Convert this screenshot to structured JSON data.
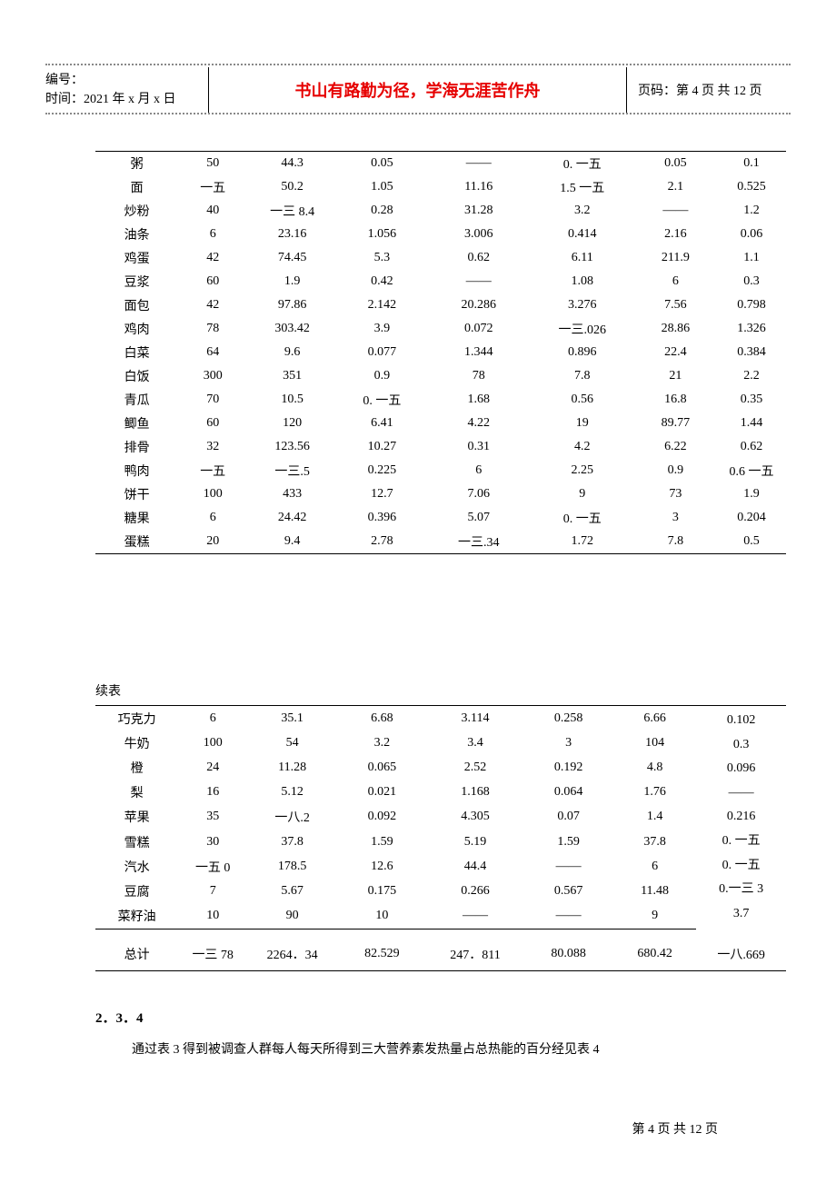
{
  "header": {
    "serial_label": "编号：",
    "date_label": "时间：2021 年 x 月 x 日",
    "center_text": "书山有路勤为径，学海无涯苦作舟",
    "page_label": "页码：第 4 页 共 12 页"
  },
  "table1": {
    "col_widths": [
      "12%",
      "10%",
      "13%",
      "13%",
      "15%",
      "15%",
      "12%",
      "10%"
    ],
    "rows": [
      [
        "粥",
        "50",
        "44.3",
        "0.05",
        "——",
        "0. 一五",
        "0.05",
        "0.1"
      ],
      [
        "面",
        "一五",
        "50.2",
        "1.05",
        "11.16",
        "1.5 一五",
        "2.1",
        "0.525"
      ],
      [
        "炒粉",
        "40",
        "一三 8.4",
        "0.28",
        "31.28",
        "3.2",
        "——",
        "1.2"
      ],
      [
        "油条",
        "6",
        "23.16",
        "1.056",
        "3.006",
        "0.414",
        "2.16",
        "0.06"
      ],
      [
        "鸡蛋",
        "42",
        "74.45",
        "5.3",
        "0.62",
        "6.11",
        "211.9",
        "1.1"
      ],
      [
        "豆浆",
        "60",
        "1.9",
        "0.42",
        "——",
        "1.08",
        "6",
        "0.3"
      ],
      [
        "面包",
        "42",
        "97.86",
        "2.142",
        "20.286",
        "3.276",
        "7.56",
        "0.798"
      ],
      [
        "鸡肉",
        "78",
        "303.42",
        "3.9",
        "0.072",
        "一三.026",
        "28.86",
        "1.326"
      ],
      [
        "白菜",
        "64",
        "9.6",
        "0.077",
        "1.344",
        "0.896",
        "22.4",
        "0.384"
      ],
      [
        "白饭",
        "300",
        "351",
        "0.9",
        "78",
        "7.8",
        "21",
        "2.2"
      ],
      [
        "青瓜",
        "70",
        "10.5",
        "0. 一五",
        "1.68",
        "0.56",
        "16.8",
        "0.35"
      ],
      [
        "鲫鱼",
        "60",
        "120",
        "6.41",
        "4.22",
        "19",
        "89.77",
        "1.44"
      ],
      [
        "排骨",
        "32",
        "123.56",
        "10.27",
        "0.31",
        "4.2",
        "6.22",
        "0.62"
      ],
      [
        "鸭肉",
        "一五",
        "一三.5",
        "0.225",
        "6",
        "2.25",
        "0.9",
        "0.6 一五"
      ],
      [
        "饼干",
        "100",
        "433",
        "12.7",
        "7.06",
        "9",
        "73",
        "1.9"
      ],
      [
        "糖果",
        "6",
        "24.42",
        "0.396",
        "5.07",
        "0. 一五",
        "3",
        "0.204"
      ],
      [
        "蛋糕",
        "20",
        "9.4",
        "2.78",
        "一三.34",
        "1.72",
        "7.8",
        "0.5"
      ]
    ]
  },
  "continue_label": "续表",
  "table2": {
    "col_widths": [
      "12%",
      "10%",
      "13%",
      "13%",
      "14%",
      "13%",
      "12%",
      "13%"
    ],
    "body_rows": [
      [
        "巧克力",
        "6",
        "35.1",
        "6.68",
        "3.114",
        "0.258",
        "6.66"
      ],
      [
        "牛奶",
        "100",
        "54",
        "3.2",
        "3.4",
        "3",
        "104"
      ],
      [
        "橙",
        "24",
        "11.28",
        "0.065",
        "2.52",
        "0.192",
        "4.8"
      ],
      [
        "梨",
        "16",
        "5.12",
        "0.021",
        "1.168",
        "0.064",
        "1.76"
      ],
      [
        "苹果",
        "35",
        "一八.2",
        "0.092",
        "4.305",
        "0.07",
        "1.4"
      ],
      [
        "雪糕",
        "30",
        "37.8",
        "1.59",
        "5.19",
        "1.59",
        "37.8"
      ],
      [
        "汽水",
        "一五 0",
        "178.5",
        "12.6",
        "44.4",
        "——",
        "6"
      ],
      [
        "豆腐",
        "7",
        "5.67",
        "0.175",
        "0.266",
        "0.567",
        "11.48"
      ],
      [
        "菜籽油",
        "10",
        "90",
        "10",
        "——",
        "——",
        "9"
      ]
    ],
    "last_col_values": [
      "0.102",
      "0.3",
      "0.096",
      "——",
      "0.216",
      "0. 一五",
      "0. 一五",
      "0.一三 3",
      "3.7"
    ],
    "total_row": [
      "总计",
      "一三 78",
      "2264．34",
      "82.529",
      "247．811",
      "80.088",
      "680.42",
      "一八.669"
    ]
  },
  "section": {
    "heading": "2．3．4",
    "para": "通过表 3 得到被调查人群每人每天所得到三大营养素发热量占总热能的百分经见表 4"
  },
  "footer": {
    "page_text": "第 4 页 共 12 页"
  }
}
